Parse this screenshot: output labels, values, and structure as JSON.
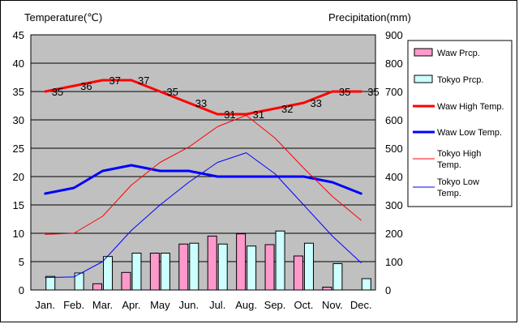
{
  "chart_data": {
    "type": "bar",
    "categories": [
      "Jan.",
      "Feb.",
      "Mar.",
      "Apr.",
      "May",
      "Jun.",
      "Jul.",
      "Aug.",
      "Sep.",
      "Oct.",
      "Nov.",
      "Dec."
    ],
    "y_left": {
      "label": "Temperature(℃)",
      "min": 0,
      "max": 45,
      "step": 5
    },
    "y_right": {
      "label": "Precipitation(mm)",
      "min": 0,
      "max": 900,
      "step": 100
    },
    "grid": true,
    "legend_position": "right",
    "plot_background": "#c0c0c0",
    "bar_series": [
      {
        "name": "Waw Prcp.",
        "axis": "right",
        "color": "#ff99cc",
        "values": [
          0,
          0,
          22,
          62,
          130,
          162,
          190,
          198,
          160,
          120,
          10,
          0
        ]
      },
      {
        "name": "Tokyo Prcp.",
        "axis": "right",
        "color": "#ccffff",
        "values": [
          48,
          60,
          118,
          130,
          130,
          165,
          162,
          155,
          208,
          165,
          93,
          40
        ]
      }
    ],
    "line_series": [
      {
        "name": "Waw High Temp.",
        "axis": "left",
        "color": "#ff0000",
        "width": 3,
        "values": [
          35,
          36,
          37,
          37,
          35,
          33,
          31,
          31,
          32,
          33,
          35,
          35
        ],
        "labels": [
          "35",
          "36",
          "37",
          "37",
          "35",
          "33",
          "31",
          "31",
          "32",
          "33",
          "35",
          "35"
        ]
      },
      {
        "name": "Waw Low Temp.",
        "axis": "left",
        "color": "#0000ff",
        "width": 3,
        "values": [
          17,
          18,
          21,
          22,
          21,
          21,
          20,
          20,
          20,
          20,
          19,
          17
        ]
      },
      {
        "name": "Tokyo High Temp.",
        "axis": "left",
        "color": "#ff0000",
        "width": 1,
        "values": [
          9.8,
          10,
          13,
          18.5,
          22.5,
          25.2,
          28.8,
          30.8,
          26.8,
          21.5,
          16.5,
          12.3
        ]
      },
      {
        "name": "Tokyo Low Temp.",
        "axis": "left",
        "color": "#0000ff",
        "width": 1,
        "values": [
          2.2,
          2.3,
          5,
          10.5,
          15,
          19,
          22.5,
          24.2,
          20.5,
          15,
          9.5,
          4.8
        ]
      }
    ],
    "legend": [
      {
        "label": "Waw Prcp.",
        "kind": "box",
        "color": "#ff99cc"
      },
      {
        "label": "Tokyo Prcp.",
        "kind": "box",
        "color": "#ccffff"
      },
      {
        "label": "Waw High Temp.",
        "kind": "line",
        "color": "#ff0000",
        "width": 3
      },
      {
        "label": "Waw Low Temp.",
        "kind": "line",
        "color": "#0000ff",
        "width": 3
      },
      {
        "label": "Tokyo High\nTemp.",
        "kind": "line",
        "color": "#ff0000",
        "width": 1
      },
      {
        "label": "Tokyo Low\nTemp.",
        "kind": "line",
        "color": "#0000ff",
        "width": 1
      }
    ]
  }
}
